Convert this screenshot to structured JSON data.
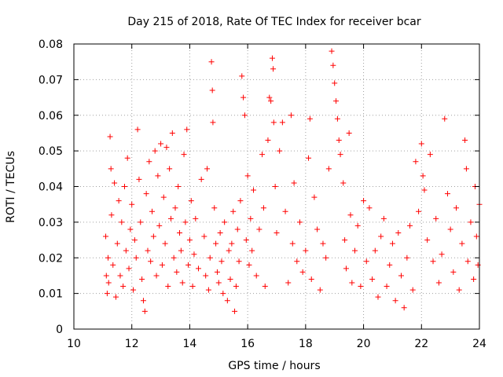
{
  "chart_data": {
    "type": "scatter",
    "title": "Day 215 of 2018, Rate Of TEC Index for receiver bcar",
    "xlabel": "GPS time / hours",
    "ylabel": "ROTI / TECUs",
    "xlim": [
      10,
      24
    ],
    "ylim": [
      0,
      0.08
    ],
    "x_ticks": [
      "10",
      "12",
      "14",
      "16",
      "18",
      "20",
      "22",
      "24"
    ],
    "y_ticks": [
      "0",
      "0.01",
      "0.02",
      "0.03",
      "0.04",
      "0.05",
      "0.06",
      "0.07",
      "0.08"
    ],
    "grid": true,
    "marker": "plus",
    "color": "#ff0000",
    "series": [
      {
        "points": [
          [
            11.1,
            0.026
          ],
          [
            11.12,
            0.015
          ],
          [
            11.15,
            0.01
          ],
          [
            11.18,
            0.02
          ],
          [
            11.2,
            0.013
          ],
          [
            11.25,
            0.054
          ],
          [
            11.28,
            0.045
          ],
          [
            11.3,
            0.032
          ],
          [
            11.35,
            0.018
          ],
          [
            11.4,
            0.041
          ],
          [
            11.45,
            0.009
          ],
          [
            11.5,
            0.024
          ],
          [
            11.55,
            0.036
          ],
          [
            11.6,
            0.015
          ],
          [
            11.65,
            0.03
          ],
          [
            11.7,
            0.012
          ],
          [
            11.75,
            0.04
          ],
          [
            11.8,
            0.022
          ],
          [
            11.85,
            0.048
          ],
          [
            11.9,
            0.017
          ],
          [
            11.95,
            0.028
          ],
          [
            12.0,
            0.035
          ],
          [
            12.05,
            0.011
          ],
          [
            12.1,
            0.025
          ],
          [
            12.15,
            0.02
          ],
          [
            12.2,
            0.056
          ],
          [
            12.25,
            0.042
          ],
          [
            12.3,
            0.03
          ],
          [
            12.35,
            0.014
          ],
          [
            12.4,
            0.008
          ],
          [
            12.45,
            0.005
          ],
          [
            12.5,
            0.038
          ],
          [
            12.55,
            0.022
          ],
          [
            12.6,
            0.047
          ],
          [
            12.65,
            0.019
          ],
          [
            12.7,
            0.033
          ],
          [
            12.75,
            0.026
          ],
          [
            12.8,
            0.05
          ],
          [
            12.85,
            0.015
          ],
          [
            12.9,
            0.043
          ],
          [
            12.95,
            0.029
          ],
          [
            13.0,
            0.052
          ],
          [
            13.05,
            0.018
          ],
          [
            13.1,
            0.037
          ],
          [
            13.15,
            0.024
          ],
          [
            13.2,
            0.051
          ],
          [
            13.25,
            0.012
          ],
          [
            13.3,
            0.045
          ],
          [
            13.35,
            0.031
          ],
          [
            13.4,
            0.055
          ],
          [
            13.45,
            0.02
          ],
          [
            13.5,
            0.034
          ],
          [
            13.55,
            0.016
          ],
          [
            13.6,
            0.04
          ],
          [
            13.65,
            0.027
          ],
          [
            13.7,
            0.022
          ],
          [
            13.75,
            0.013
          ],
          [
            13.8,
            0.049
          ],
          [
            13.85,
            0.03
          ],
          [
            13.9,
            0.056
          ],
          [
            13.95,
            0.018
          ],
          [
            14.0,
            0.025
          ],
          [
            14.05,
            0.036
          ],
          [
            14.1,
            0.012
          ],
          [
            14.15,
            0.021
          ],
          [
            14.2,
            0.031
          ],
          [
            14.3,
            0.017
          ],
          [
            14.4,
            0.042
          ],
          [
            14.5,
            0.026
          ],
          [
            14.55,
            0.015
          ],
          [
            14.6,
            0.045
          ],
          [
            14.65,
            0.011
          ],
          [
            14.7,
            0.02
          ],
          [
            14.75,
            0.075
          ],
          [
            14.78,
            0.067
          ],
          [
            14.8,
            0.058
          ],
          [
            14.85,
            0.034
          ],
          [
            14.9,
            0.024
          ],
          [
            14.95,
            0.016
          ],
          [
            15.0,
            0.013
          ],
          [
            15.05,
            0.027
          ],
          [
            15.1,
            0.019
          ],
          [
            15.15,
            0.01
          ],
          [
            15.2,
            0.03
          ],
          [
            15.3,
            0.008
          ],
          [
            15.35,
            0.022
          ],
          [
            15.4,
            0.014
          ],
          [
            15.45,
            0.024
          ],
          [
            15.5,
            0.033
          ],
          [
            15.55,
            0.005
          ],
          [
            15.6,
            0.012
          ],
          [
            15.65,
            0.028
          ],
          [
            15.7,
            0.019
          ],
          [
            15.75,
            0.036
          ],
          [
            15.8,
            0.071
          ],
          [
            15.85,
            0.065
          ],
          [
            15.9,
            0.06
          ],
          [
            15.95,
            0.025
          ],
          [
            16.0,
            0.043
          ],
          [
            16.05,
            0.018
          ],
          [
            16.1,
            0.031
          ],
          [
            16.15,
            0.022
          ],
          [
            16.2,
            0.039
          ],
          [
            16.3,
            0.015
          ],
          [
            16.4,
            0.028
          ],
          [
            16.5,
            0.049
          ],
          [
            16.55,
            0.034
          ],
          [
            16.6,
            0.012
          ],
          [
            16.7,
            0.053
          ],
          [
            16.75,
            0.065
          ],
          [
            16.8,
            0.064
          ],
          [
            16.85,
            0.076
          ],
          [
            16.88,
            0.073
          ],
          [
            16.9,
            0.058
          ],
          [
            16.95,
            0.04
          ],
          [
            17.0,
            0.027
          ],
          [
            17.1,
            0.05
          ],
          [
            17.2,
            0.058
          ],
          [
            17.3,
            0.033
          ],
          [
            17.4,
            0.013
          ],
          [
            17.5,
            0.06
          ],
          [
            17.55,
            0.024
          ],
          [
            17.6,
            0.041
          ],
          [
            17.7,
            0.019
          ],
          [
            17.8,
            0.03
          ],
          [
            17.9,
            0.016
          ],
          [
            18.0,
            0.022
          ],
          [
            18.1,
            0.048
          ],
          [
            18.15,
            0.059
          ],
          [
            18.2,
            0.014
          ],
          [
            18.3,
            0.037
          ],
          [
            18.4,
            0.028
          ],
          [
            18.5,
            0.011
          ],
          [
            18.6,
            0.024
          ],
          [
            18.7,
            0.02
          ],
          [
            18.8,
            0.045
          ],
          [
            18.9,
            0.078
          ],
          [
            18.95,
            0.074
          ],
          [
            19.0,
            0.069
          ],
          [
            19.05,
            0.064
          ],
          [
            19.1,
            0.059
          ],
          [
            19.15,
            0.053
          ],
          [
            19.2,
            0.049
          ],
          [
            19.3,
            0.041
          ],
          [
            19.35,
            0.025
          ],
          [
            19.4,
            0.017
          ],
          [
            19.5,
            0.055
          ],
          [
            19.55,
            0.032
          ],
          [
            19.6,
            0.013
          ],
          [
            19.7,
            0.022
          ],
          [
            19.8,
            0.029
          ],
          [
            19.9,
            0.012
          ],
          [
            20.0,
            0.036
          ],
          [
            20.1,
            0.019
          ],
          [
            20.2,
            0.034
          ],
          [
            20.3,
            0.014
          ],
          [
            20.4,
            0.022
          ],
          [
            20.5,
            0.009
          ],
          [
            20.6,
            0.026
          ],
          [
            20.7,
            0.031
          ],
          [
            20.8,
            0.012
          ],
          [
            20.9,
            0.018
          ],
          [
            21.0,
            0.024
          ],
          [
            21.1,
            0.008
          ],
          [
            21.2,
            0.027
          ],
          [
            21.3,
            0.015
          ],
          [
            21.4,
            0.006
          ],
          [
            21.5,
            0.02
          ],
          [
            21.6,
            0.029
          ],
          [
            21.7,
            0.011
          ],
          [
            21.8,
            0.047
          ],
          [
            21.9,
            0.033
          ],
          [
            22.0,
            0.052
          ],
          [
            22.05,
            0.043
          ],
          [
            22.1,
            0.039
          ],
          [
            22.2,
            0.025
          ],
          [
            22.3,
            0.049
          ],
          [
            22.4,
            0.019
          ],
          [
            22.5,
            0.031
          ],
          [
            22.6,
            0.013
          ],
          [
            22.7,
            0.021
          ],
          [
            22.8,
            0.059
          ],
          [
            22.9,
            0.038
          ],
          [
            23.0,
            0.028
          ],
          [
            23.1,
            0.016
          ],
          [
            23.2,
            0.034
          ],
          [
            23.3,
            0.011
          ],
          [
            23.4,
            0.024
          ],
          [
            23.5,
            0.053
          ],
          [
            23.55,
            0.045
          ],
          [
            23.6,
            0.019
          ],
          [
            23.7,
            0.03
          ],
          [
            23.8,
            0.014
          ],
          [
            23.85,
            0.04
          ],
          [
            23.9,
            0.026
          ],
          [
            23.95,
            0.018
          ],
          [
            24.0,
            0.035
          ]
        ]
      }
    ]
  }
}
